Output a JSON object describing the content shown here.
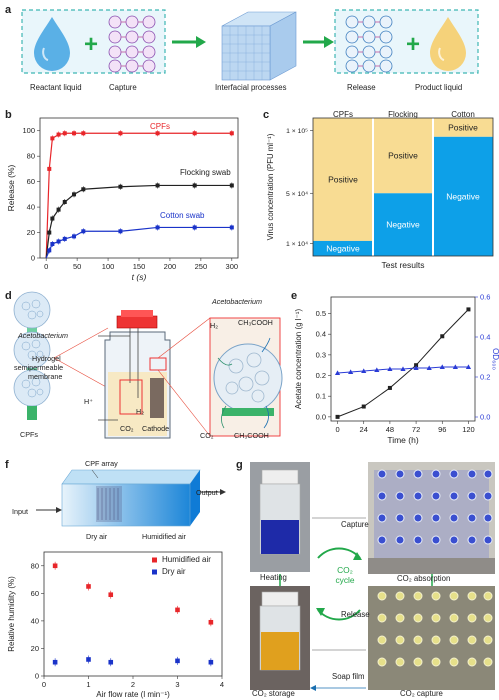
{
  "panels": {
    "a": "a",
    "b": "b",
    "c": "c",
    "d": "d",
    "e": "e",
    "f": "f",
    "g": "g"
  },
  "a": {
    "reactant": "Reactant liquid",
    "capture": "Capture",
    "interfacial": "Interfacial processes",
    "release": "Release",
    "product": "Product liquid",
    "colors": {
      "liquid_blue": "#5ab0e6",
      "dash_teal": "#3fb6b4",
      "arrow_green": "#22a84a",
      "product_yellow": "#f5d27a"
    }
  },
  "b": {
    "xlabel": "t (s)",
    "ylabel": "Release (%)",
    "xticks": [
      "0",
      "50",
      "100",
      "150",
      "200",
      "250",
      "300"
    ],
    "yticks": [
      "0",
      "20",
      "40",
      "60",
      "80",
      "100"
    ],
    "chart_data": {
      "type": "line",
      "xlabel": "t (s)",
      "ylabel": "Release (%)",
      "xlim": [
        -10,
        310
      ],
      "ylim": [
        0,
        110
      ],
      "series": [
        {
          "name": "CPFs",
          "color": "#e8262a",
          "x": [
            0,
            5,
            10,
            20,
            30,
            45,
            60,
            120,
            180,
            240,
            300
          ],
          "y": [
            0,
            70,
            94,
            97,
            98,
            98,
            98,
            98,
            98,
            98,
            98
          ]
        },
        {
          "name": "Flocking swab",
          "color": "#222222",
          "x": [
            0,
            5,
            10,
            20,
            30,
            45,
            60,
            120,
            180,
            240,
            300
          ],
          "y": [
            0,
            20,
            31,
            38,
            44,
            50,
            54,
            56,
            57,
            57,
            57
          ]
        },
        {
          "name": "Cotton swab",
          "color": "#1a33c9",
          "x": [
            0,
            5,
            10,
            20,
            30,
            45,
            60,
            120,
            180,
            240,
            300
          ],
          "y": [
            0,
            6,
            11,
            13,
            15,
            17,
            21,
            21,
            24,
            24,
            24
          ]
        }
      ]
    }
  },
  "c": {
    "ylabel": "Virus concentration (PFU ml⁻¹)",
    "xlabel": "Test results",
    "yticks": [
      "1 × 10⁵",
      "5 × 10⁴",
      "1 × 10⁴"
    ],
    "cols": [
      "CPFs",
      "Flocking",
      "Cotton"
    ],
    "cells": {
      "cpfs_pos": "Positive",
      "cpfs_neg": "Negative",
      "flock_pos": "Positive",
      "flock_neg": "Negative",
      "cotton_pos": "Positive",
      "cotton_neg": "Negative"
    },
    "colors": {
      "positive": "#f8dc93",
      "negative": "#0da0e8"
    },
    "chart_data": {
      "type": "heatmap",
      "title": "",
      "xlabel": "Test results",
      "ylabel": "Virus concentration (PFU ml⁻¹)",
      "categories": [
        "CPFs",
        "Flocking",
        "Cotton"
      ],
      "negative_below": [
        12000,
        50000,
        95000
      ],
      "ymax": 110000
    }
  },
  "d": {
    "acetobacterium_left": "Acetobacterium",
    "hydrogel": "Hydrogel",
    "semipermeable": "semipermeable",
    "membrane": "membrane",
    "cpfs": "CPFs",
    "hplus": "H⁺",
    "co2a": "CO₂",
    "h2a": "H₂",
    "cathode": "Cathode",
    "acetobacterium_right": "Acetobacterium",
    "h2b": "H₂",
    "ch3cooh_top": "CH₃COOH",
    "co2b": "CO₂",
    "ch3cooh_bottom": "CH₃COOH"
  },
  "e": {
    "xlabel": "Time (h)",
    "ylabel_left": "Acetate concentration (g l⁻¹)",
    "ylabel_right": "OD₆₀₀",
    "xticks": [
      "0",
      "24",
      "48",
      "72",
      "96",
      "120"
    ],
    "yticks_left": [
      "0.0",
      "0.1",
      "0.2",
      "0.3",
      "0.4",
      "0.5"
    ],
    "yticks_right": [
      "0.0",
      "0.2",
      "0.4",
      "0.6"
    ],
    "chart_data": {
      "type": "line",
      "xlabel": "Time (h)",
      "ylabel": "Acetate concentration (g l⁻¹)",
      "y2label": "OD₆₀₀",
      "xlim": [
        -6,
        126
      ],
      "ylim": [
        -0.02,
        0.58
      ],
      "y2lim": [
        -0.02,
        0.6
      ],
      "series": [
        {
          "axis": "left",
          "color": "#222222",
          "x": [
            0,
            24,
            48,
            72,
            96,
            120
          ],
          "y": [
            0.0,
            0.05,
            0.14,
            0.25,
            0.39,
            0.52
          ]
        },
        {
          "axis": "right",
          "color": "#2a3bd6",
          "x": [
            0,
            12,
            24,
            36,
            48,
            60,
            72,
            84,
            96,
            108,
            120
          ],
          "y": [
            0.22,
            0.225,
            0.23,
            0.235,
            0.24,
            0.24,
            0.245,
            0.245,
            0.25,
            0.25,
            0.25
          ]
        }
      ]
    }
  },
  "f": {
    "cpf_array": "CPF array",
    "input": "Input",
    "output": "Output",
    "dry_air": "Dry air",
    "humidified_air": "Humidified air",
    "ylabel": "Relative humidity (%)",
    "xlabel": "Air flow rate (l min⁻¹)",
    "xticks": [
      "0",
      "1",
      "2",
      "3",
      "4"
    ],
    "yticks": [
      "0",
      "20",
      "40",
      "60",
      "80"
    ],
    "chart_data": {
      "type": "scatter",
      "xlabel": "Air flow rate (l min⁻¹)",
      "ylabel": "Relative humidity (%)",
      "xlim": [
        0,
        4
      ],
      "ylim": [
        0,
        90
      ],
      "series": [
        {
          "name": "Humidified air",
          "color": "#e8262a",
          "x": [
            0.25,
            1,
            1.5,
            3,
            3.75
          ],
          "y": [
            80,
            65,
            59,
            48,
            39
          ]
        },
        {
          "name": "Dry air",
          "color": "#1a33c9",
          "x": [
            0.25,
            1,
            1.5,
            3,
            3.75
          ],
          "y": [
            10,
            12,
            10,
            11,
            10
          ]
        }
      ]
    }
  },
  "g": {
    "capture": "Capture",
    "release": "Release",
    "heating": "Heating",
    "co2": "CO₂",
    "cycle": "cycle",
    "co2_absorption": "CO₂ absorption",
    "co2_storage": "CO₂ storage",
    "co2_capture": "CO₂ capture",
    "soap_film": "Soap film"
  }
}
